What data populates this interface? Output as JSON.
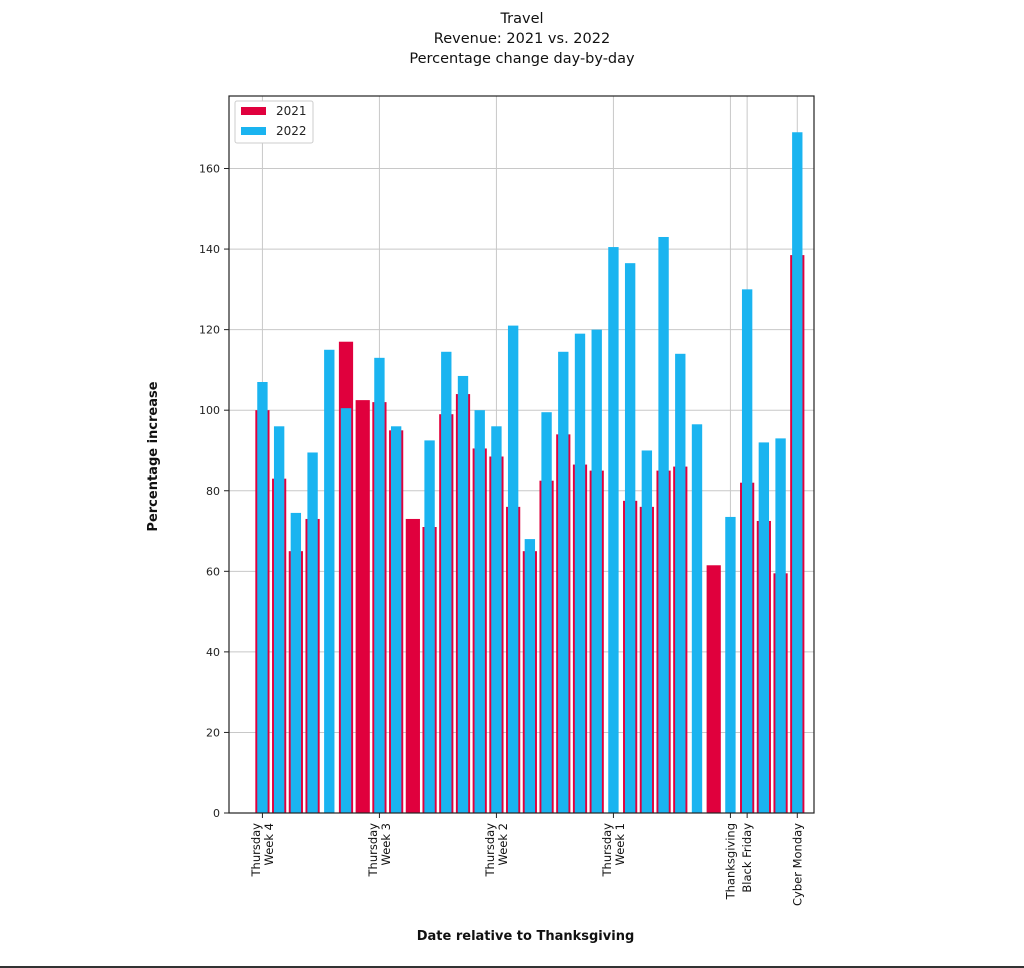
{
  "titles": [
    "Travel",
    "Revenue: 2021 vs. 2022",
    "Percentage change day-by-day"
  ],
  "chart_data": {
    "type": "bar",
    "title": "Travel\nRevenue: 2021 vs. 2022\nPercentage change day-by-day",
    "xlabel": "Date relative to Thanksgiving",
    "ylabel": "Percentage increase",
    "ylim": [
      0,
      178
    ],
    "yticks": [
      0,
      20,
      40,
      60,
      80,
      100,
      120,
      140,
      160
    ],
    "xlim": [
      -2,
      33
    ],
    "grid": true,
    "legend_position": "top-left",
    "x_ticks": [
      {
        "x": 0,
        "label": "Thursday\nWeek 4"
      },
      {
        "x": 7,
        "label": "Thursday\nWeek  3"
      },
      {
        "x": 14,
        "label": "Thursday\nWeek 2"
      },
      {
        "x": 21,
        "label": "Thursday\nWeek 1"
      },
      {
        "x": 28,
        "label": "Thanksgiving"
      },
      {
        "x": 29,
        "label": "Black Friday"
      },
      {
        "x": 32,
        "label": "Cyber Monday"
      }
    ],
    "series": [
      {
        "name": "2021",
        "color": "#e0003d",
        "values": [
          100,
          83,
          65,
          73,
          117,
          102.5,
          102,
          95,
          73,
          71,
          99,
          104,
          90.5,
          88.5,
          76,
          65,
          82.5,
          94,
          86.5,
          85,
          77.5,
          76,
          85,
          86,
          61.5,
          82,
          72.5,
          59.5,
          138.5
        ]
      },
      {
        "name": "2022",
        "color": "#1ab4f0",
        "values": [
          107,
          96,
          74.5,
          89.5,
          115,
          100.5,
          113,
          96,
          92.5,
          114.5,
          108.5,
          100,
          96,
          121,
          68,
          99.5,
          114.5,
          119,
          120,
          140.5,
          136.5,
          90,
          143,
          114,
          96.5,
          73.5,
          130,
          92,
          93,
          169
        ]
      }
    ],
    "x_2021": [
      0,
      1,
      2,
      3,
      5,
      6,
      7,
      8,
      9,
      10,
      11,
      12,
      13,
      14,
      15,
      16,
      17,
      18,
      19,
      20,
      22,
      23,
      24,
      25,
      27,
      29,
      30,
      31,
      32
    ],
    "x_2022": [
      0,
      1,
      2,
      3,
      4,
      5,
      7,
      8,
      10,
      11,
      12,
      13,
      14,
      15,
      16,
      17,
      18,
      19,
      20,
      21,
      22,
      23,
      24,
      25,
      26,
      28,
      29,
      30,
      31,
      32
    ]
  }
}
